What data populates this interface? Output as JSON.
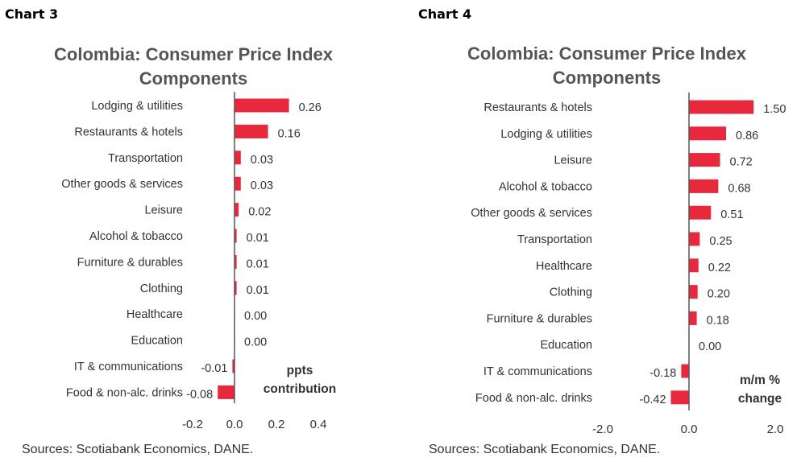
{
  "chart_data": [
    {
      "label": "Chart 3",
      "type": "bar",
      "orientation": "horizontal",
      "title_lines": [
        "Colombia: Consumer Price Index",
        "Components"
      ],
      "categories": [
        "Lodging & utilities",
        "Restaurants & hotels",
        "Transportation",
        "Other goods & services",
        "Leisure",
        "Alcohol & tobacco",
        "Furniture & durables",
        "Clothing",
        "Healthcare",
        "Education",
        "IT & communications",
        "Food & non-alc. drinks"
      ],
      "values": [
        0.26,
        0.16,
        0.03,
        0.03,
        0.02,
        0.01,
        0.01,
        0.01,
        0.0,
        0.0,
        -0.01,
        -0.08
      ],
      "value_labels": [
        "0.26",
        "0.16",
        "0.03",
        "0.03",
        "0.02",
        "0.01",
        "0.01",
        "0.01",
        "0.00",
        "0.00",
        "-0.01",
        "-0.08"
      ],
      "xlim": [
        -0.2,
        0.4
      ],
      "xticks": [
        -0.2,
        0.0,
        0.2,
        0.4
      ],
      "xtick_labels": [
        "-0.2",
        "0.0",
        "0.2",
        "0.4"
      ],
      "unit_lines": [
        "ppts",
        "contribution"
      ],
      "source": "Sources: Scotiabank Economics, DANE.",
      "bar_color": "#e8283c",
      "grid": false
    },
    {
      "label": "Chart 4",
      "type": "bar",
      "orientation": "horizontal",
      "title_lines": [
        "Colombia: Consumer Price Index",
        "Components"
      ],
      "categories": [
        "Restaurants & hotels",
        "Lodging & utilities",
        "Leisure",
        "Alcohol & tobacco",
        "Other goods & services",
        "Transportation",
        "Healthcare",
        "Clothing",
        "Furniture & durables",
        "Education",
        "IT & communications",
        "Food & non-alc. drinks"
      ],
      "values": [
        1.5,
        0.86,
        0.72,
        0.68,
        0.51,
        0.25,
        0.22,
        0.2,
        0.18,
        0.0,
        -0.18,
        -0.42
      ],
      "value_labels": [
        "1.50",
        "0.86",
        "0.72",
        "0.68",
        "0.51",
        "0.25",
        "0.22",
        "0.20",
        "0.18",
        "0.00",
        "-0.18",
        "-0.42"
      ],
      "xlim": [
        -2.0,
        2.0
      ],
      "xticks": [
        -2.0,
        0.0,
        2.0
      ],
      "xtick_labels": [
        "-2.0",
        "0.0",
        "2.0"
      ],
      "unit_lines": [
        "m/m %",
        "change"
      ],
      "source": "Sources: Scotiabank Economics, DANE.",
      "bar_color": "#e8283c",
      "grid": false
    }
  ]
}
